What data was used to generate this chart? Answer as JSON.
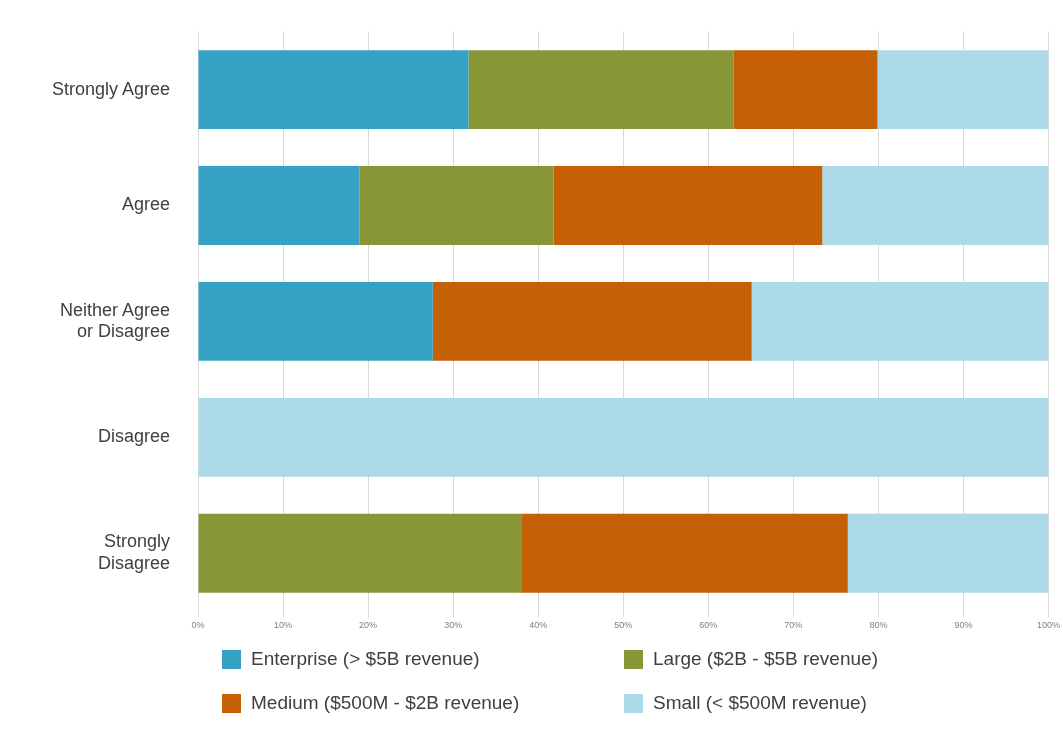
{
  "chart_data": {
    "type": "bar",
    "orientation": "horizontal",
    "stacked": true,
    "categories": [
      "Strongly Agree",
      "Agree",
      "Neither Agree or Disagree",
      "Disagree",
      "Strongly Disagree"
    ],
    "series": [
      {
        "name": "Enterprise (> $5B revenue)",
        "color": "#35a1c3",
        "values": [
          31.8,
          19.0,
          27.6,
          0,
          0
        ]
      },
      {
        "name": "Large ($2B - $5B revenue)",
        "color": "#889638",
        "values": [
          31.2,
          22.8,
          0,
          0,
          38.1
        ]
      },
      {
        "name": "Medium ($500M - $2B revenue)",
        "color": "#c56104",
        "values": [
          16.9,
          31.6,
          37.5,
          0,
          38.3
        ]
      },
      {
        "name": "Small (< $500M revenue)",
        "color": "#addae8",
        "values": [
          20.1,
          26.6,
          34.9,
          100,
          23.6
        ]
      }
    ],
    "xlim": [
      0,
      100
    ],
    "xticks": [
      {
        "value": 0,
        "label": "0%"
      },
      {
        "value": 10,
        "label": "10%"
      },
      {
        "value": 20,
        "label": "20%"
      },
      {
        "value": 30,
        "label": "30%"
      },
      {
        "value": 40,
        "label": "40%"
      },
      {
        "value": 50,
        "label": "50%"
      },
      {
        "value": 60,
        "label": "60%"
      },
      {
        "value": 70,
        "label": "70%"
      },
      {
        "value": 80,
        "label": "80%"
      },
      {
        "value": 90,
        "label": "90%"
      },
      {
        "value": 100,
        "label": "100%"
      }
    ],
    "grid": "x",
    "legend": "bottom"
  }
}
